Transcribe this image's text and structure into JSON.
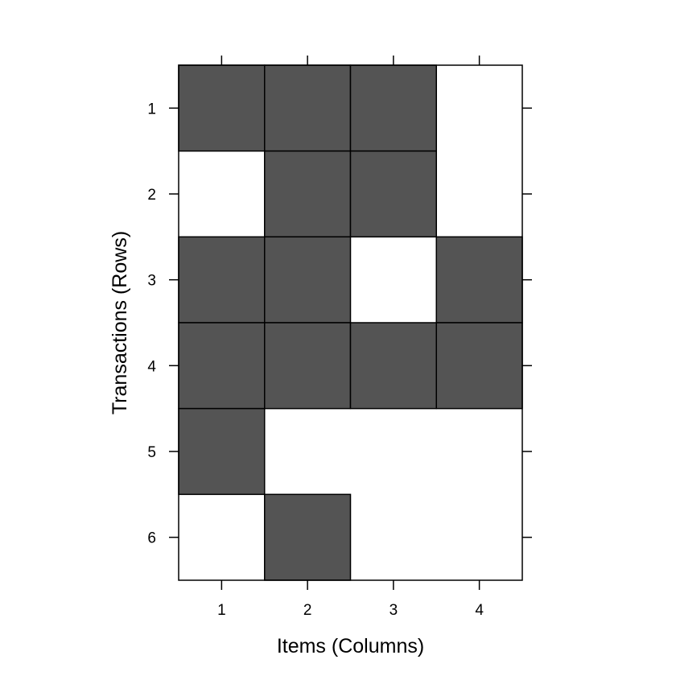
{
  "chart_data": {
    "type": "heatmap",
    "title": "",
    "xlabel": "Items (Columns)",
    "ylabel": "Transactions (Rows)",
    "columns": [
      "1",
      "2",
      "3",
      "4"
    ],
    "rows": [
      "1",
      "2",
      "3",
      "4",
      "5",
      "6"
    ],
    "matrix": [
      [
        1,
        1,
        1,
        0
      ],
      [
        0,
        1,
        1,
        0
      ],
      [
        1,
        1,
        0,
        1
      ],
      [
        1,
        1,
        1,
        1
      ],
      [
        1,
        0,
        0,
        0
      ],
      [
        0,
        1,
        0,
        0
      ]
    ],
    "filled_color": "#545454",
    "empty_color": "#ffffff",
    "border_color": "#000000",
    "grid": false
  }
}
